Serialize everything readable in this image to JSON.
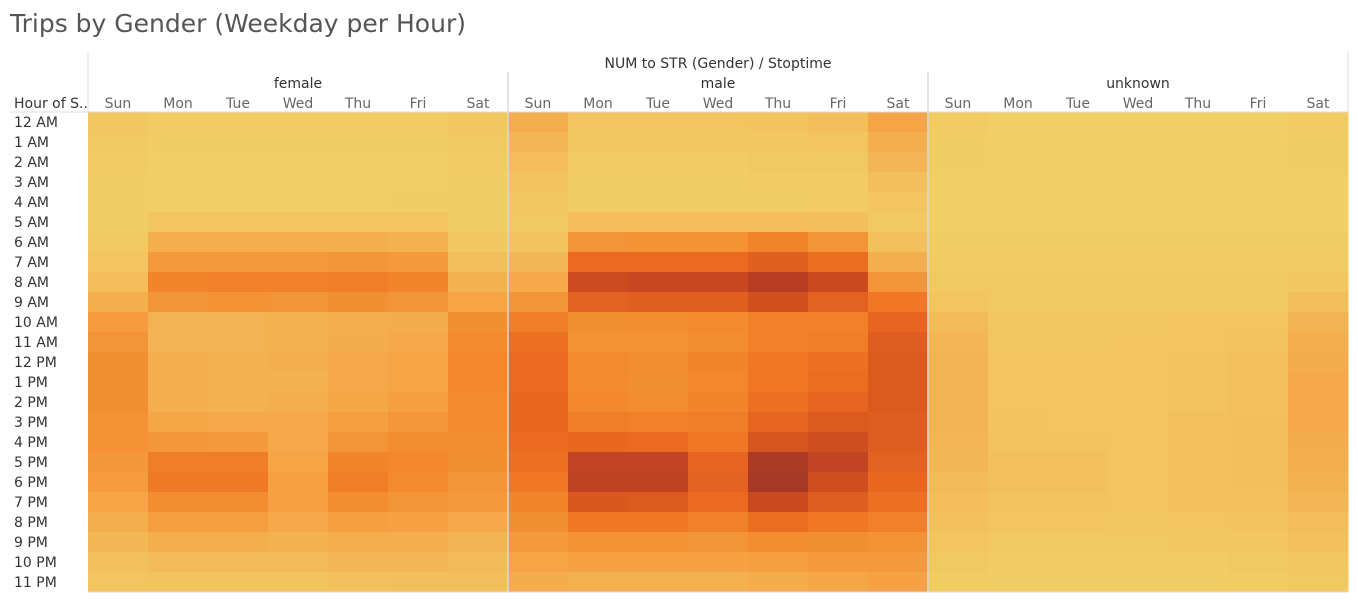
{
  "title": "Trips by Gender (Weekday per Hour)",
  "colors": {
    "scale": [
      "#f2d166",
      "#f3bd5a",
      "#f5a446",
      "#f38a2e",
      "#ec6a1f",
      "#d2501e",
      "#b63d24",
      "#a33725"
    ],
    "grid_line": "#dcdcdc",
    "text_dark": "#333333",
    "text_muted": "#666666"
  },
  "chart_data": {
    "type": "heatmap",
    "title": "Trips by Gender (Weekday per Hour)",
    "column_header": "NUM to STR (Gender)  /  Stoptime",
    "row_header": "Hour of S..",
    "groups": [
      "female",
      "male",
      "unknown"
    ],
    "days": [
      "Sun",
      "Mon",
      "Tue",
      "Wed",
      "Thu",
      "Fri",
      "Sat"
    ],
    "hours": [
      "12 AM",
      "1 AM",
      "2 AM",
      "3 AM",
      "4 AM",
      "5 AM",
      "6 AM",
      "7 AM",
      "8 AM",
      "9 AM",
      "10 AM",
      "11 AM",
      "12 PM",
      "1 PM",
      "2 PM",
      "3 PM",
      "4 PM",
      "5 PM",
      "6 PM",
      "7 PM",
      "8 PM",
      "9 PM",
      "10 PM",
      "11 PM"
    ],
    "value_scale": [
      0,
      7
    ],
    "values": {
      "female": [
        [
          0.5,
          0.3,
          0.3,
          0.3,
          0.3,
          0.3,
          0.5
        ],
        [
          0.4,
          0.2,
          0.2,
          0.2,
          0.2,
          0.2,
          0.4
        ],
        [
          0.3,
          0.1,
          0.1,
          0.1,
          0.1,
          0.1,
          0.3
        ],
        [
          0.2,
          0.1,
          0.1,
          0.1,
          0.1,
          0.1,
          0.2
        ],
        [
          0.2,
          0.1,
          0.1,
          0.1,
          0.1,
          0.2,
          0.2
        ],
        [
          0.2,
          0.6,
          0.6,
          0.6,
          0.6,
          0.6,
          0.2
        ],
        [
          0.4,
          1.6,
          1.6,
          1.6,
          1.6,
          1.5,
          0.5
        ],
        [
          0.6,
          2.4,
          2.4,
          2.4,
          2.6,
          2.4,
          0.9
        ],
        [
          1.0,
          3.2,
          3.3,
          3.3,
          3.4,
          3.2,
          1.5
        ],
        [
          1.6,
          2.6,
          2.7,
          2.6,
          2.8,
          2.6,
          2.0
        ],
        [
          2.3,
          1.4,
          1.4,
          1.5,
          1.6,
          1.7,
          2.8
        ],
        [
          2.6,
          1.4,
          1.4,
          1.5,
          1.7,
          1.8,
          3.0
        ],
        [
          2.8,
          1.6,
          1.5,
          1.6,
          1.8,
          2.0,
          3.1
        ],
        [
          2.8,
          1.6,
          1.5,
          1.5,
          1.8,
          2.0,
          3.1
        ],
        [
          2.8,
          1.6,
          1.5,
          1.6,
          1.9,
          2.2,
          3.0
        ],
        [
          2.7,
          1.9,
          1.8,
          1.8,
          2.2,
          2.5,
          3.0
        ],
        [
          2.7,
          2.5,
          2.4,
          1.8,
          2.6,
          2.9,
          2.9
        ],
        [
          2.5,
          3.4,
          3.4,
          2.0,
          3.2,
          3.1,
          2.8
        ],
        [
          2.3,
          3.5,
          3.5,
          2.1,
          3.4,
          3.0,
          2.6
        ],
        [
          2.0,
          2.9,
          2.9,
          2.1,
          2.9,
          2.6,
          2.4
        ],
        [
          1.6,
          2.2,
          2.2,
          1.8,
          2.2,
          2.1,
          1.8
        ],
        [
          1.2,
          1.6,
          1.6,
          1.5,
          1.6,
          1.6,
          1.4
        ],
        [
          0.8,
          1.1,
          1.1,
          1.1,
          1.2,
          1.2,
          1.1
        ],
        [
          0.6,
          0.7,
          0.7,
          0.7,
          0.8,
          0.9,
          0.9
        ]
      ],
      "male": [
        [
          1.6,
          0.6,
          0.6,
          0.6,
          0.7,
          0.9,
          2.0
        ],
        [
          1.3,
          0.5,
          0.5,
          0.5,
          0.5,
          0.6,
          1.6
        ],
        [
          1.0,
          0.3,
          0.3,
          0.3,
          0.4,
          0.4,
          1.3
        ],
        [
          0.7,
          0.2,
          0.2,
          0.2,
          0.3,
          0.3,
          0.9
        ],
        [
          0.5,
          0.2,
          0.2,
          0.2,
          0.2,
          0.3,
          0.6
        ],
        [
          0.4,
          1.0,
          1.0,
          1.0,
          1.0,
          0.9,
          0.4
        ],
        [
          0.7,
          2.6,
          2.7,
          2.7,
          3.2,
          2.6,
          0.8
        ],
        [
          1.2,
          4.0,
          4.0,
          4.0,
          4.4,
          3.9,
          1.6
        ],
        [
          1.8,
          5.2,
          5.4,
          5.4,
          6.0,
          5.3,
          2.6
        ],
        [
          2.6,
          4.3,
          4.4,
          4.4,
          5.0,
          4.3,
          3.6
        ],
        [
          3.4,
          2.8,
          2.9,
          3.0,
          3.3,
          3.3,
          4.2
        ],
        [
          3.8,
          2.7,
          2.7,
          2.9,
          3.3,
          3.4,
          4.5
        ],
        [
          4.0,
          3.0,
          2.9,
          3.2,
          3.6,
          3.8,
          4.6
        ],
        [
          4.0,
          3.0,
          2.8,
          3.1,
          3.6,
          3.9,
          4.6
        ],
        [
          4.1,
          3.1,
          2.9,
          3.2,
          3.8,
          4.2,
          4.6
        ],
        [
          4.1,
          3.4,
          3.3,
          3.4,
          4.2,
          4.6,
          4.5
        ],
        [
          4.0,
          4.1,
          4.0,
          3.6,
          4.8,
          5.1,
          4.5
        ],
        [
          3.8,
          5.6,
          5.6,
          4.2,
          6.5,
          5.6,
          4.3
        ],
        [
          3.6,
          5.7,
          5.7,
          4.3,
          6.8,
          5.1,
          4.1
        ],
        [
          3.2,
          4.7,
          4.6,
          4.0,
          5.3,
          4.5,
          3.8
        ],
        [
          2.8,
          3.6,
          3.6,
          3.3,
          3.9,
          3.6,
          3.3
        ],
        [
          2.4,
          2.7,
          2.7,
          2.6,
          2.9,
          2.8,
          2.7
        ],
        [
          2.0,
          2.1,
          2.1,
          2.1,
          2.2,
          2.4,
          2.4
        ],
        [
          1.7,
          1.5,
          1.5,
          1.5,
          1.7,
          1.9,
          2.1
        ]
      ],
      "unknown": [
        [
          0.3,
          0.1,
          0.1,
          0.1,
          0.1,
          0.1,
          0.3
        ],
        [
          0.2,
          0.1,
          0.1,
          0.1,
          0.1,
          0.1,
          0.2
        ],
        [
          0.2,
          0.1,
          0.1,
          0.1,
          0.1,
          0.1,
          0.2
        ],
        [
          0.1,
          0.1,
          0.1,
          0.1,
          0.1,
          0.1,
          0.1
        ],
        [
          0.1,
          0.1,
          0.1,
          0.1,
          0.1,
          0.1,
          0.1
        ],
        [
          0.1,
          0.1,
          0.1,
          0.1,
          0.1,
          0.1,
          0.1
        ],
        [
          0.2,
          0.2,
          0.2,
          0.2,
          0.2,
          0.2,
          0.2
        ],
        [
          0.3,
          0.3,
          0.3,
          0.3,
          0.3,
          0.3,
          0.3
        ],
        [
          0.4,
          0.4,
          0.4,
          0.4,
          0.4,
          0.4,
          0.5
        ],
        [
          0.6,
          0.4,
          0.4,
          0.4,
          0.4,
          0.4,
          0.9
        ],
        [
          1.1,
          0.5,
          0.5,
          0.5,
          0.6,
          0.6,
          1.4
        ],
        [
          1.3,
          0.5,
          0.5,
          0.6,
          0.6,
          0.7,
          1.6
        ],
        [
          1.4,
          0.6,
          0.6,
          0.6,
          0.7,
          0.8,
          1.7
        ],
        [
          1.4,
          0.6,
          0.6,
          0.6,
          0.7,
          0.8,
          1.8
        ],
        [
          1.4,
          0.6,
          0.6,
          0.6,
          0.7,
          0.8,
          1.8
        ],
        [
          1.4,
          0.7,
          0.6,
          0.6,
          0.8,
          0.9,
          1.8
        ],
        [
          1.3,
          0.7,
          0.7,
          0.6,
          0.8,
          0.9,
          1.7
        ],
        [
          1.2,
          0.8,
          0.8,
          0.6,
          0.8,
          0.9,
          1.6
        ],
        [
          1.1,
          0.8,
          0.8,
          0.6,
          0.8,
          0.9,
          1.5
        ],
        [
          1.0,
          0.7,
          0.7,
          0.6,
          0.8,
          0.8,
          1.3
        ],
        [
          0.8,
          0.6,
          0.6,
          0.5,
          0.6,
          0.7,
          1.0
        ],
        [
          0.6,
          0.4,
          0.4,
          0.4,
          0.5,
          0.5,
          0.8
        ],
        [
          0.4,
          0.3,
          0.3,
          0.3,
          0.3,
          0.4,
          0.5
        ],
        [
          0.3,
          0.2,
          0.2,
          0.2,
          0.2,
          0.3,
          0.4
        ]
      ]
    }
  }
}
